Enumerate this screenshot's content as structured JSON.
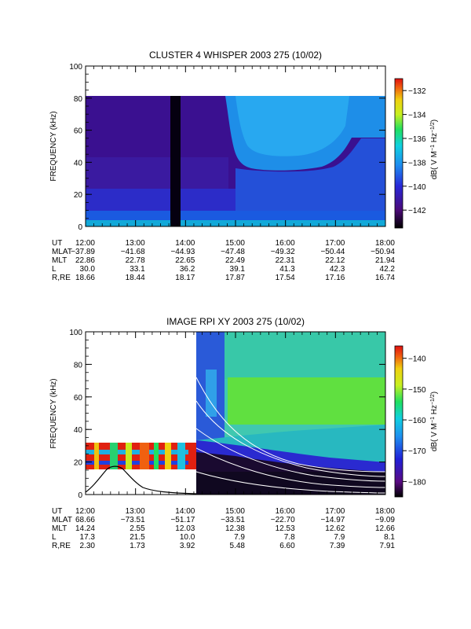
{
  "chart_data": [
    {
      "type": "heatmap",
      "title": "CLUSTER 4 WHISPER 2003 275 (10/02)",
      "ylabel": "FREQUENCY (kHz)",
      "ylim": [
        0,
        100
      ],
      "yticks": [
        "0",
        "20",
        "40",
        "60",
        "80",
        "100"
      ],
      "x_ticks": [
        "12:00",
        "13:00",
        "14:00",
        "15:00",
        "16:00",
        "17:00",
        "18:00"
      ],
      "colorbar": {
        "label": "dB( V M⁻¹ Hz⁻¹ᐟ²)",
        "label_plain": "dB( V M^-1 Hz^-1/2)",
        "range": [
          -143.5,
          -131
        ],
        "ticks": [
          "-132",
          "-134",
          "-136",
          "-138",
          "-140",
          "-142"
        ]
      },
      "ephemeris": [
        {
          "name": "UT",
          "values": [
            "12:00",
            "13:00",
            "14:00",
            "15:00",
            "16:00",
            "17:00",
            "18:00"
          ]
        },
        {
          "name": "MLAT",
          "values": [
            "-37.89",
            "-41.68",
            "-44.93",
            "-47.48",
            "-49.32",
            "-50.44",
            "-50.94"
          ]
        },
        {
          "name": "MLT",
          "values": [
            "22.86",
            "22.78",
            "22.65",
            "22.49",
            "22.31",
            "22.12",
            "21.94"
          ]
        },
        {
          "name": "L",
          "values": [
            "30.0",
            "33.1",
            "36.2",
            "39.1",
            "41.3",
            "42.3",
            "42.2"
          ]
        },
        {
          "name": "R,RE",
          "values": [
            "18.66",
            "18.44",
            "18.17",
            "17.87",
            "17.54",
            "17.16",
            "16.74"
          ]
        }
      ]
    },
    {
      "type": "heatmap",
      "title": "IMAGE RPI XY 2003 275 (10/02)",
      "ylabel": "FREQUENCY (kHz)",
      "ylim": [
        0,
        100
      ],
      "yticks": [
        "0",
        "20",
        "40",
        "60",
        "80",
        "100"
      ],
      "x_ticks": [
        "12:00",
        "13:00",
        "14:00",
        "15:00",
        "16:00",
        "17:00",
        "18:00"
      ],
      "colorbar": {
        "label_plain": "dB( V M^-1 Hz^-1/2)",
        "range": [
          -185,
          -136
        ],
        "ticks": [
          "-140",
          "-150",
          "-160",
          "-170",
          "-180"
        ]
      },
      "ephemeris": [
        {
          "name": "UT",
          "values": [
            "12:00",
            "13:00",
            "14:00",
            "15:00",
            "16:00",
            "17:00",
            "18:00"
          ]
        },
        {
          "name": "MLAT",
          "values": [
            "68.66",
            "-73.51",
            "-51.17",
            "-33.51",
            "-22.70",
            "-14.97",
            "-9.09"
          ]
        },
        {
          "name": "MLT",
          "values": [
            "14.24",
            "2.55",
            "12.03",
            "12.38",
            "12.53",
            "12.62",
            "12.66"
          ]
        },
        {
          "name": "L",
          "values": [
            "17.3",
            "21.5",
            "10.0",
            "7.9",
            "7.8",
            "7.9",
            "8.1"
          ]
        },
        {
          "name": "R,RE",
          "values": [
            "2.30",
            "1.73",
            "3.92",
            "5.48",
            "6.60",
            "7.39",
            "7.91"
          ]
        }
      ]
    }
  ]
}
